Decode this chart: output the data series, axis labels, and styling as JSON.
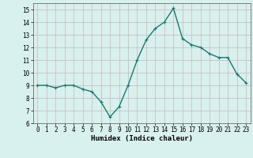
{
  "x": [
    0,
    1,
    2,
    3,
    4,
    5,
    6,
    7,
    8,
    9,
    10,
    11,
    12,
    13,
    14,
    15,
    16,
    17,
    18,
    19,
    20,
    21,
    22,
    23
  ],
  "y": [
    9.0,
    9.0,
    8.8,
    9.0,
    9.0,
    8.7,
    8.5,
    7.7,
    6.5,
    7.3,
    9.0,
    11.0,
    12.6,
    13.5,
    14.0,
    15.1,
    12.7,
    12.2,
    12.0,
    11.5,
    11.2,
    11.2,
    9.9,
    9.2
  ],
  "line_color": "#1a7a6e",
  "marker": "+",
  "marker_size": 3,
  "background_color": "#d8f0ee",
  "grid_color": "#c8b8b8",
  "xlabel": "Humidex (Indice chaleur)",
  "xlim": [
    -0.5,
    23.5
  ],
  "ylim": [
    6,
    15.5
  ],
  "yticks": [
    6,
    7,
    8,
    9,
    10,
    11,
    12,
    13,
    14,
    15
  ],
  "xticks": [
    0,
    1,
    2,
    3,
    4,
    5,
    6,
    7,
    8,
    9,
    10,
    11,
    12,
    13,
    14,
    15,
    16,
    17,
    18,
    19,
    20,
    21,
    22,
    23
  ],
  "xlabel_fontsize": 6.5,
  "tick_fontsize": 5.5,
  "linewidth": 1.0
}
